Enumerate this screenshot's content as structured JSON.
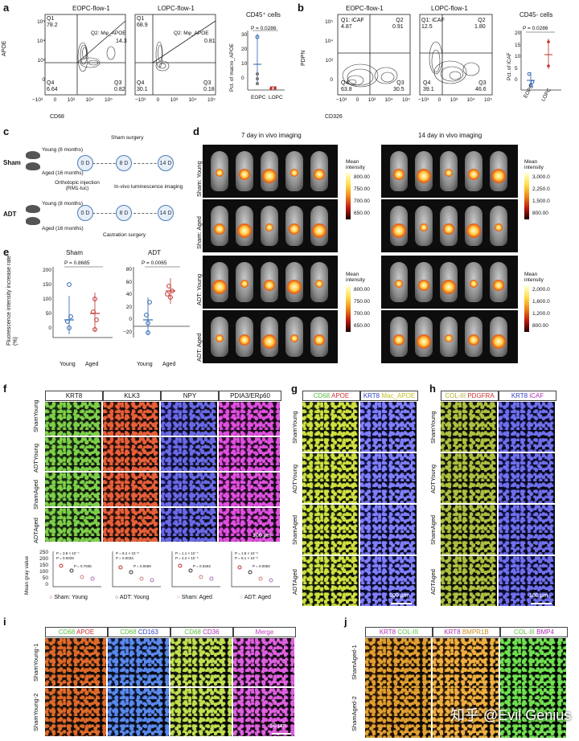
{
  "panel_a": {
    "letter": "a",
    "plot1_title": "EOPC-flow-1",
    "plot2_title": "LOPC-flow-1",
    "plot1": {
      "q1": "Q1",
      "q1_val": "78.2",
      "q2": "Q2: Mφ_APOE",
      "q2_val": "14.3",
      "q4": "Q4",
      "q4_val": "6.64",
      "q3": "Q3",
      "q3_val": "0.82"
    },
    "plot2": {
      "q1": "Q1",
      "q1_val": "68.9",
      "q2": "Q2: Mφ_APOE",
      "q2_val": "0.81",
      "q4": "Q4",
      "q4_val": "30.1",
      "q3": "Q3",
      "q3_val": "0.18"
    },
    "y_axis": "APOE",
    "x_axis": "CD68",
    "y_ticks": [
      "10⁵",
      "10⁴",
      "10³",
      "0",
      "−10³"
    ],
    "x_ticks": [
      "−10³",
      "0",
      "10³",
      "10⁴",
      "10⁵"
    ],
    "dot_title": "CD45⁺ cells",
    "dot_p": "P = 0.0286",
    "dot_ylabel": "Pct. of macro_APOE",
    "dot_yticks": [
      "30",
      "20",
      "10",
      "0"
    ],
    "dot_x": [
      "EOPC",
      "LOPC"
    ]
  },
  "panel_b": {
    "letter": "b",
    "plot1_title": "EOPC-flow-1",
    "plot2_title": "LOPC-flow-1",
    "plot1": {
      "q1": "Q1: iCAF",
      "q1_val": "4.87",
      "q2": "Q2",
      "q2_val": "0.91",
      "q4": "Q4",
      "q4_val": "63.8",
      "q3": "Q3",
      "q3_val": "30.5"
    },
    "plot2": {
      "q1": "Q1: iCAF",
      "q1_val": "12.5",
      "q2": "Q2",
      "q2_val": "1.80",
      "q4": "Q4",
      "q4_val": "39.1",
      "q3": "Q3",
      "q3_val": "46.6"
    },
    "y_axis": "PDPN",
    "x_axis": "CD326",
    "y_ticks": [
      "10⁵",
      "10⁴",
      "10³",
      "0",
      "−10³"
    ],
    "x_ticks": [
      "−10³",
      "0",
      "10³",
      "10⁴",
      "10⁵"
    ],
    "dot_title": "CD45- cells",
    "dot_p": "P = 0.0286",
    "dot_ylabel": "Pct. of iCAF",
    "dot_yticks": [
      "20",
      "15",
      "10",
      "5",
      "0"
    ],
    "dot_x": [
      "EOPC",
      "LOPC"
    ]
  },
  "panel_c": {
    "letter": "c",
    "sham": "Sham",
    "adt": "ADT",
    "young": "Young (8 months)",
    "aged": "Aged (16 months)",
    "sham_surgery": "Sham surgery",
    "castration": "Castration surgery",
    "injection": "Orthotopic injection (RM1-luc)",
    "imaging": "In-vivo luminescence imaging",
    "day0": "0 D",
    "day8": "8 D",
    "day14": "14 D"
  },
  "panel_d": {
    "letter": "d",
    "col1": "7 day in vivo imaging",
    "col2": "14 day in vivo imaging",
    "rows": [
      "Sham: Young",
      "Sham: Aged",
      "ADT: Young",
      "ADT: Aged"
    ],
    "mean_intensity": "Mean intensity",
    "scale1": [
      "800.00",
      "750.00",
      "700.00",
      "650.00"
    ],
    "scale2": [
      "3,000.0",
      "2,250.0",
      "1,500.0",
      "800.00"
    ],
    "scale3": [
      "800.00",
      "750.00",
      "700.00",
      "650.00"
    ],
    "scale4": [
      "2,000.0",
      "1,600.0",
      "1,200.0",
      "800.00"
    ]
  },
  "panel_e": {
    "letter": "e",
    "ylabel": "Fluorescence intensity increase rate (%)",
    "chart1_title": "Sham",
    "chart1_p": "P = 0.8685",
    "chart2_title": "ADT",
    "chart2_p": "P = 0.0065",
    "x_labels": [
      "Young",
      "Aged"
    ],
    "y1_ticks": [
      "200",
      "150",
      "100",
      "50",
      "0"
    ],
    "y2_ticks": [
      "80",
      "60",
      "40",
      "20",
      "0",
      "−20"
    ]
  },
  "panel_f": {
    "letter": "f",
    "headers": [
      "KRT8",
      "KLK3",
      "NPY",
      "PDIA3/ERp60"
    ],
    "rows": [
      "ShamYoung",
      "ADTYoung",
      "ShamAged",
      "ADTAged"
    ],
    "scale": "100 μm",
    "ylabel": "Mean gray value",
    "legend": [
      "Sham: Young",
      "ADT: Young",
      "Sham: Aged",
      "ADT: Aged"
    ],
    "stats": [
      [
        "P = 3.8 × 10⁻⁷",
        "P = 0.0029",
        "P = 0.7935"
      ],
      [
        "P = 8.4 × 10⁻⁸",
        "P = 0.0033",
        "P = 0.0069"
      ],
      [
        "P = 1.1 × 10⁻⁷",
        "P = 4.2 × 10⁻⁵",
        "P = 0.0263"
      ],
      [
        "P = 1.8 × 10⁻⁸",
        "P = 8.1 × 10⁻⁵",
        "P = 0.0083"
      ]
    ],
    "y_ticks": [
      "250",
      "200",
      "150",
      "100",
      "50",
      "0"
    ]
  },
  "panel_g": {
    "letter": "g",
    "header1_a": "CD68",
    "header1_b": "APOE",
    "header2_a": "KRT8",
    "header2_b": "Mac_APOE",
    "rows": [
      "ShamYoung",
      "ADTYoung",
      "ShamAged",
      "ADTAged"
    ],
    "scale": "100 μm"
  },
  "panel_h": {
    "letter": "h",
    "header1_a": "COL-III",
    "header1_b": "PDGFRA",
    "header2_a": "KRT8",
    "header2_b": "iCAF",
    "rows": [
      "ShamYoung",
      "ADTYoung",
      "ShamAged",
      "ADTAged"
    ],
    "scale": "100 μm"
  },
  "panel_i": {
    "letter": "i",
    "headers": [
      {
        "a": "CD68",
        "b": "APOE"
      },
      {
        "a": "CD68",
        "b": "CD163"
      },
      {
        "a": "CD68",
        "b": "CD36"
      },
      {
        "a": "Merge",
        "b": ""
      }
    ],
    "rows": [
      "ShamYoung-1",
      "ShamYoung-2"
    ],
    "scale": "50 μm"
  },
  "panel_j": {
    "letter": "j",
    "headers": [
      {
        "a": "KRT8",
        "b": "COL-III"
      },
      {
        "a": "KRT8",
        "b": "BMPR1B"
      },
      {
        "a": "COL-III",
        "b": "BMP4"
      }
    ],
    "rows": [
      "ShamAged-1",
      "ShamAged-2"
    ]
  },
  "watermark": "知乎 @Evil Genius",
  "colors": {
    "young_sham": "#2a63b0",
    "aged_sham": "#c0302a",
    "green": "#6fd04a",
    "red": "#e0402a",
    "blue": "#4a5ed8",
    "magenta": "#d040d0",
    "yellow": "#e0d040"
  }
}
